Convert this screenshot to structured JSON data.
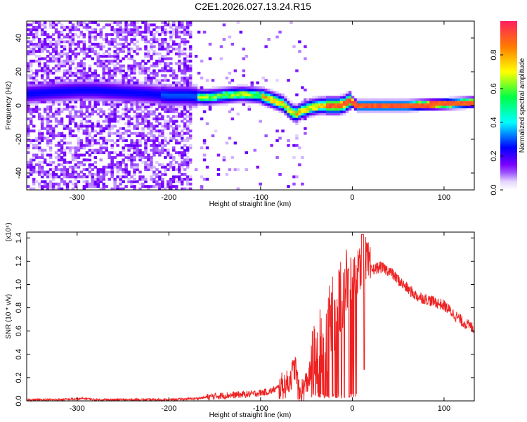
{
  "title": "C2E1.2026.027.13.24.R15",
  "chart_data": [
    {
      "type": "heatmap",
      "xlabel": "Height of straight line (km)",
      "ylabel": "Frequency (Hz)",
      "xlim": [
        -355,
        133
      ],
      "ylim": [
        -50,
        50
      ],
      "xticks": [
        -300,
        -200,
        -100,
        0,
        100
      ],
      "yticks": [
        -40,
        -20,
        0,
        20,
        40
      ],
      "colorbar": {
        "label": "Normalized spectral amplitude",
        "range": [
          0.0,
          1.0
        ],
        "ticks": [
          "0.0",
          "0.2",
          "0.4",
          "0.6",
          "0.8"
        ],
        "tick_values": [
          0.0,
          0.2,
          0.4,
          0.6,
          0.8
        ]
      },
      "ridge": {
        "x": [
          -355,
          -330,
          -300,
          -280,
          -250,
          -220,
          -200,
          -180,
          -160,
          -140,
          -120,
          -100,
          -85,
          -75,
          -68,
          -62,
          -55,
          -45,
          -35,
          -25,
          -15,
          -8,
          -3,
          0,
          5,
          20,
          60,
          100,
          133
        ],
        "y": [
          7,
          8,
          9,
          9,
          8,
          7,
          6,
          6,
          5,
          6,
          7,
          6,
          3,
          1,
          -3,
          -5,
          -3,
          -1,
          0,
          0,
          0,
          1,
          3,
          2,
          0,
          0,
          0,
          1,
          2
        ]
      }
    },
    {
      "type": "line",
      "xlabel": "Height of straight line (km)",
      "ylabel": "SNR (10 * v/v)",
      "y_multiplier": "(x10⁴)",
      "xlim": [
        -355,
        133
      ],
      "ylim": [
        0,
        1.45
      ],
      "xticks": [
        -300,
        -200,
        -100,
        0,
        100
      ],
      "yticks": [
        "0.0",
        "0.2",
        "0.4",
        "0.6",
        "0.8",
        "1.0",
        "1.2",
        "1.4"
      ],
      "ytick_values": [
        0.0,
        0.2,
        0.4,
        0.6,
        0.8,
        1.0,
        1.2,
        1.4
      ],
      "series": [
        {
          "color": "#ee2222",
          "x": [
            -355,
            -320,
            -290,
            -280,
            -250,
            -200,
            -170,
            -150,
            -130,
            -110,
            -90,
            -70,
            -62,
            -58,
            -50,
            -40,
            -30,
            -20,
            -10,
            0,
            5,
            10,
            13,
            20,
            30,
            40,
            55,
            70,
            90,
            100,
            110,
            120,
            133
          ],
          "y": [
            0.01,
            0.01,
            0.02,
            0.01,
            0.01,
            0.01,
            0.02,
            0.04,
            0.05,
            0.06,
            0.08,
            0.15,
            0.3,
            0.05,
            0.15,
            0.35,
            0.55,
            0.75,
            0.95,
            1.05,
            1.1,
            1.12,
            1.25,
            1.12,
            1.15,
            1.12,
            1.0,
            0.9,
            0.85,
            0.82,
            0.75,
            0.68,
            0.62
          ]
        }
      ]
    }
  ]
}
